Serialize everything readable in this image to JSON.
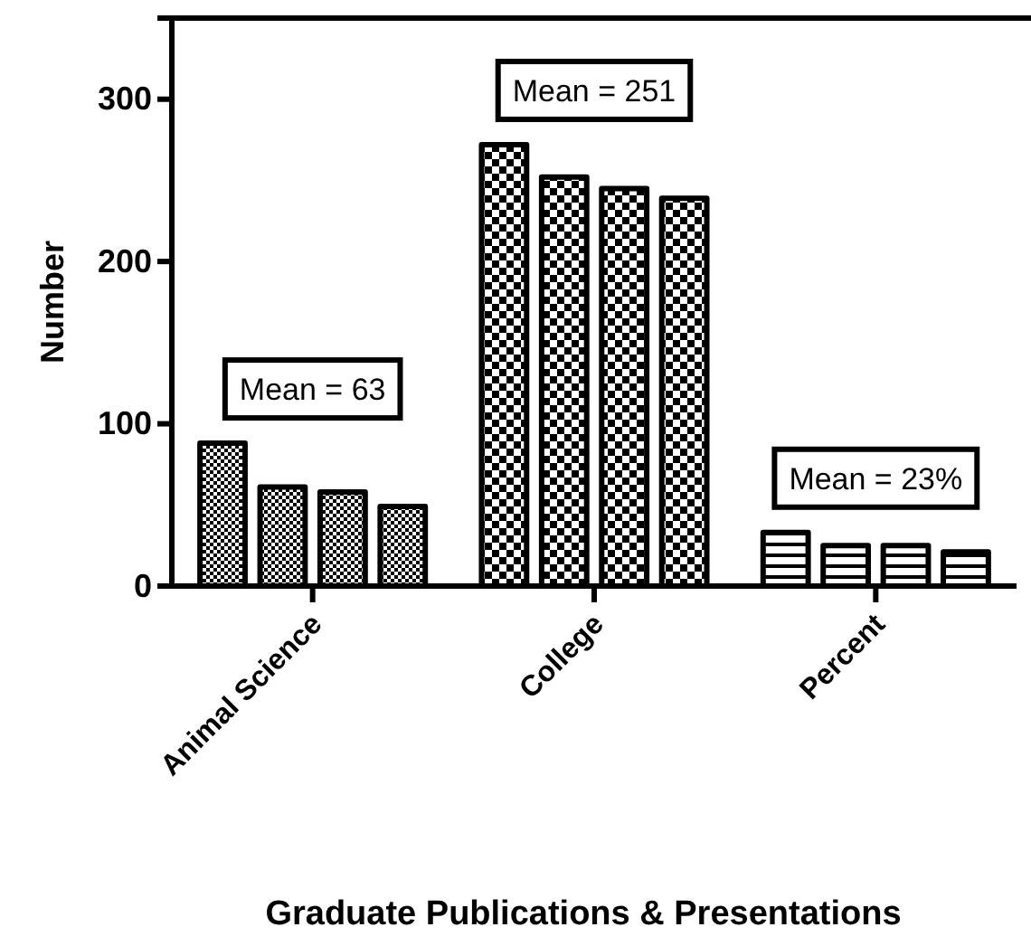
{
  "chart_data": {
    "type": "bar",
    "xlabel": "Graduate Publications & Presentations",
    "ylabel": "Number",
    "categories": [
      "Animal Science",
      "College",
      "Percent"
    ],
    "series": [
      {
        "color": "#000000",
        "values": [
          88,
          272,
          33
        ]
      },
      {
        "color": "#000000",
        "values": [
          61,
          252,
          25
        ]
      },
      {
        "color": "#000000",
        "values": [
          58,
          245,
          25
        ]
      },
      {
        "color": "#000000",
        "values": [
          49,
          239,
          21
        ]
      }
    ],
    "ylim": [
      0,
      350
    ],
    "yticks": [
      0,
      100,
      200,
      300
    ],
    "grid": false,
    "annotations": [
      "Mean = 63",
      "Mean = 251",
      "Mean = 23%"
    ]
  }
}
